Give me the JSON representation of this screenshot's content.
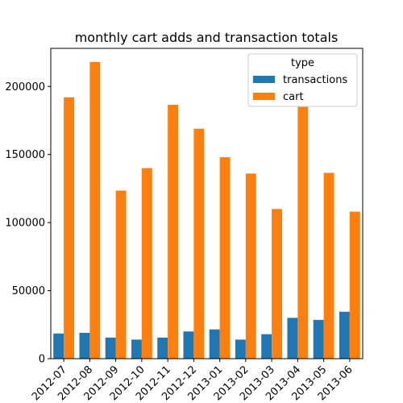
{
  "chart_data": {
    "type": "bar",
    "title": "monthly cart adds and transaction totals",
    "xlabel": "",
    "ylabel": "",
    "ylim": [
      0,
      228000
    ],
    "yticks": [
      0,
      50000,
      100000,
      150000,
      200000
    ],
    "categories": [
      "2012-07",
      "2012-08",
      "2012-09",
      "2012-10",
      "2012-11",
      "2012-12",
      "2013-01",
      "2013-02",
      "2013-03",
      "2013-04",
      "2013-05",
      "2013-06"
    ],
    "legend": {
      "title": "type",
      "position": "top-right"
    },
    "series": [
      {
        "name": "transactions",
        "color": "#1f77b4",
        "values": [
          18500,
          19000,
          15500,
          14000,
          15500,
          20000,
          21500,
          14000,
          18000,
          30000,
          28500,
          34500
        ]
      },
      {
        "name": "cart",
        "color": "#ff7f0e",
        "values": [
          192000,
          218000,
          123500,
          140000,
          186500,
          169000,
          148000,
          136000,
          110000,
          185000,
          136500,
          108000
        ]
      }
    ]
  }
}
